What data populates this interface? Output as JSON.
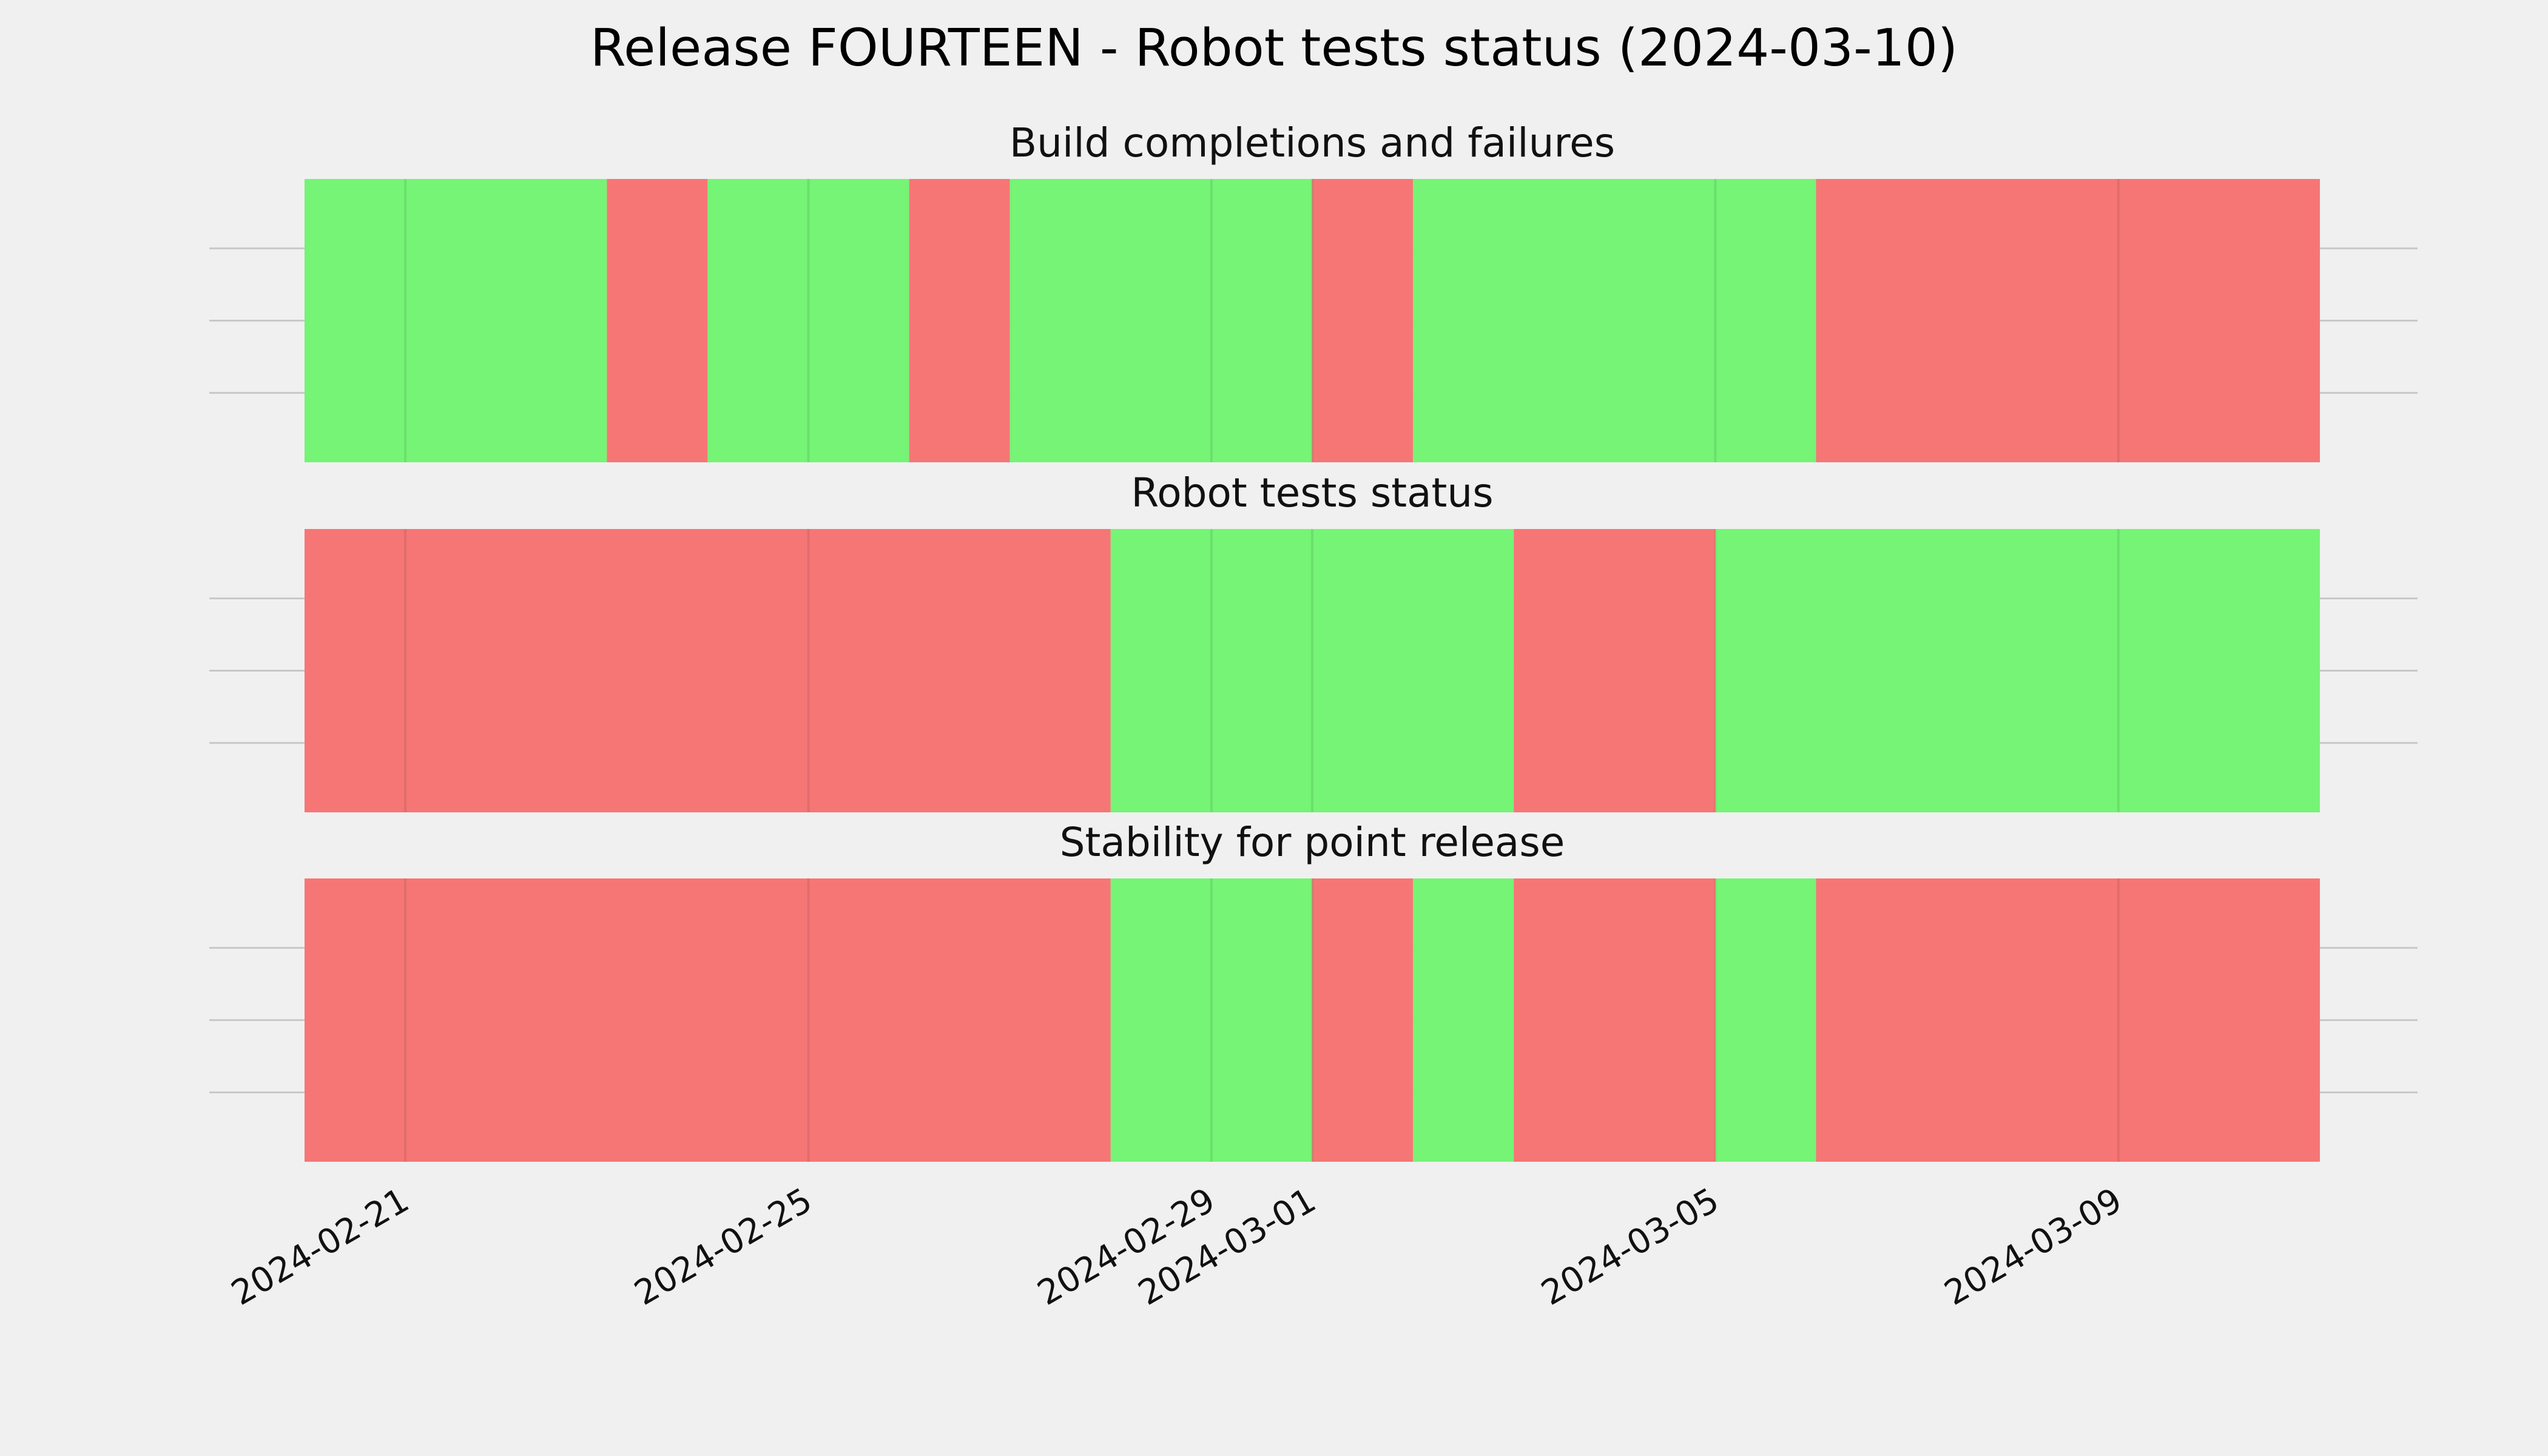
{
  "title": "Release FOURTEEN - Robot tests status (2024-03-10)",
  "colors": {
    "pass": "#75f475",
    "fail": "#f67676",
    "background": "#f0f0f0"
  },
  "chart_data": {
    "type": "timeline",
    "x_axis": {
      "type": "date",
      "range": [
        "2024-02-20",
        "2024-03-11"
      ],
      "ticks": [
        "2024-02-21",
        "2024-02-25",
        "2024-02-29",
        "2024-03-01",
        "2024-03-05",
        "2024-03-09"
      ]
    },
    "panels": [
      {
        "title": "Build completions and failures",
        "segments": [
          {
            "start": "2024-02-20",
            "end": "2024-02-23",
            "status": "pass"
          },
          {
            "start": "2024-02-23",
            "end": "2024-02-24",
            "status": "fail"
          },
          {
            "start": "2024-02-24",
            "end": "2024-02-26",
            "status": "pass"
          },
          {
            "start": "2024-02-26",
            "end": "2024-02-27",
            "status": "fail"
          },
          {
            "start": "2024-02-27",
            "end": "2024-03-01",
            "status": "pass"
          },
          {
            "start": "2024-03-01",
            "end": "2024-03-02",
            "status": "fail"
          },
          {
            "start": "2024-03-02",
            "end": "2024-03-06",
            "status": "pass"
          },
          {
            "start": "2024-03-06",
            "end": "2024-03-11",
            "status": "fail"
          }
        ]
      },
      {
        "title": "Robot tests status",
        "segments": [
          {
            "start": "2024-02-20",
            "end": "2024-02-28",
            "status": "fail"
          },
          {
            "start": "2024-02-28",
            "end": "2024-03-03",
            "status": "pass"
          },
          {
            "start": "2024-03-03",
            "end": "2024-03-05",
            "status": "fail"
          },
          {
            "start": "2024-03-05",
            "end": "2024-03-11",
            "status": "pass"
          }
        ]
      },
      {
        "title": "Stability for point release",
        "segments": [
          {
            "start": "2024-02-20",
            "end": "2024-02-28",
            "status": "fail"
          },
          {
            "start": "2024-02-28",
            "end": "2024-03-01",
            "status": "pass"
          },
          {
            "start": "2024-03-01",
            "end": "2024-03-02",
            "status": "fail"
          },
          {
            "start": "2024-03-02",
            "end": "2024-03-03",
            "status": "pass"
          },
          {
            "start": "2024-03-03",
            "end": "2024-03-05",
            "status": "fail"
          },
          {
            "start": "2024-03-05",
            "end": "2024-03-06",
            "status": "pass"
          },
          {
            "start": "2024-03-06",
            "end": "2024-03-11",
            "status": "fail"
          }
        ]
      }
    ]
  }
}
